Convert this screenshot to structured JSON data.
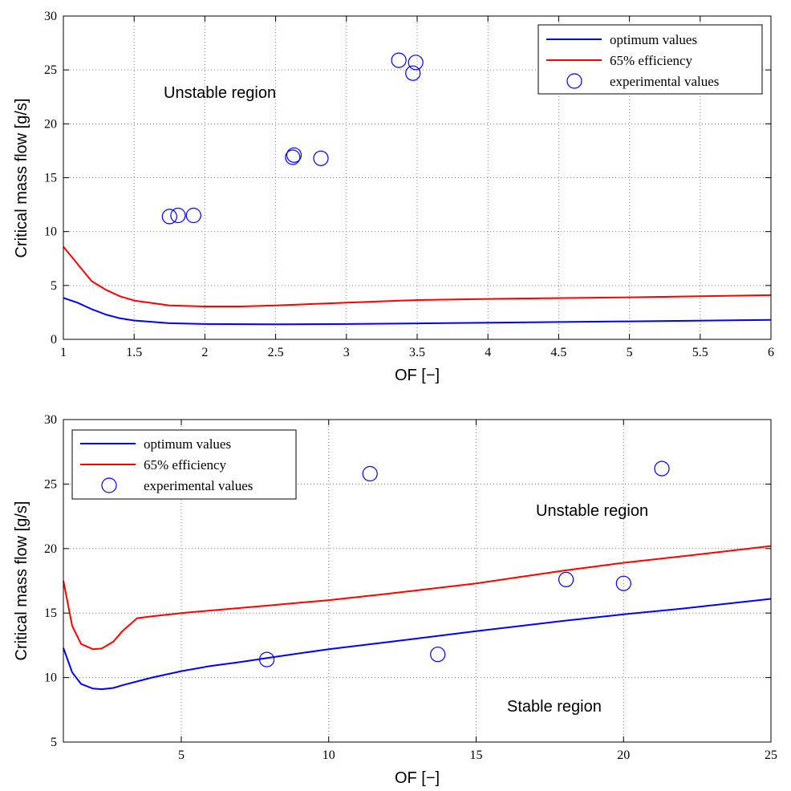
{
  "colors": {
    "optimum": "#0000ff",
    "efficiency": "#ff0000",
    "experimental": "#0000ff",
    "grid": "#7f7f7f",
    "axes": "#000000"
  },
  "chart_data": [
    {
      "type": "line",
      "xlabel": "OF [−]",
      "ylabel": "Critical mass flow [g/s]",
      "xlim": [
        1,
        6
      ],
      "ylim": [
        0,
        30
      ],
      "xticks": [
        1,
        1.5,
        2,
        2.5,
        3,
        3.5,
        4,
        4.5,
        5,
        5.5,
        6
      ],
      "xtick_labels": [
        "1",
        "1.5",
        "2",
        "2.5",
        "3",
        "3.5",
        "4",
        "4.5",
        "5",
        "5.5",
        "6"
      ],
      "yticks": [
        0,
        5,
        10,
        15,
        20,
        25,
        30
      ],
      "ytick_labels": [
        "0",
        "5",
        "10",
        "15",
        "20",
        "25",
        "30"
      ],
      "grid": "dotted",
      "legend_position": "top-right",
      "series": [
        {
          "name": "optimum values",
          "kind": "line",
          "color": "#0000ff",
          "x": [
            1,
            1.1,
            1.2,
            1.3,
            1.4,
            1.5,
            1.75,
            2,
            2.5,
            3,
            3.5,
            4,
            5,
            6
          ],
          "y": [
            3.85,
            3.4,
            2.8,
            2.3,
            1.95,
            1.75,
            1.5,
            1.42,
            1.4,
            1.42,
            1.48,
            1.55,
            1.67,
            1.8
          ]
        },
        {
          "name": "65% efficiency",
          "kind": "line",
          "color": "#ff0000",
          "x": [
            1,
            1.1,
            1.2,
            1.3,
            1.4,
            1.5,
            1.75,
            2,
            2.25,
            2.5,
            3,
            3.5,
            4,
            5,
            6
          ],
          "y": [
            8.6,
            7,
            5.4,
            4.6,
            4,
            3.6,
            3.15,
            3.05,
            3.05,
            3.15,
            3.4,
            3.65,
            3.75,
            3.9,
            4.1
          ]
        },
        {
          "name": "experimental values",
          "kind": "scatter",
          "color": "#0000ff",
          "x": [
            1.75,
            1.81,
            1.92,
            2.62,
            2.63,
            2.82,
            3.37,
            3.47,
            3.49
          ],
          "y": [
            11.4,
            11.5,
            11.5,
            16.9,
            17.1,
            16.8,
            25.9,
            24.7,
            25.7
          ]
        }
      ],
      "annotations": [
        {
          "text": "Unstable region",
          "x": 1.7,
          "y": 23.2
        }
      ]
    },
    {
      "type": "line",
      "xlabel": "OF [−]",
      "ylabel": "Critical mass flow [g/s]",
      "xlim": [
        1,
        25
      ],
      "ylim": [
        5,
        30
      ],
      "xticks": [
        5,
        10,
        15,
        20,
        25
      ],
      "xtick_labels": [
        "5",
        "10",
        "15",
        "20",
        "25"
      ],
      "yticks": [
        5,
        10,
        15,
        20,
        25,
        30
      ],
      "ytick_labels": [
        "5",
        "10",
        "15",
        "20",
        "25",
        "30"
      ],
      "grid": "dotted",
      "legend_position": "top-left",
      "series": [
        {
          "name": "optimum values",
          "kind": "line",
          "color": "#0000ff",
          "x": [
            1,
            1.3,
            1.6,
            2,
            2.3,
            2.7,
            3,
            3.5,
            4,
            5,
            6,
            7,
            8,
            10,
            12,
            15,
            18,
            20,
            22,
            25
          ],
          "y": [
            12.3,
            10.4,
            9.5,
            9.15,
            9.1,
            9.2,
            9.4,
            9.7,
            10,
            10.5,
            10.9,
            11.2,
            11.55,
            12.2,
            12.75,
            13.6,
            14.4,
            14.9,
            15.35,
            16.1
          ]
        },
        {
          "name": "65% efficiency",
          "kind": "line",
          "color": "#ff0000",
          "x": [
            1,
            1.3,
            1.6,
            2,
            2.3,
            2.7,
            3,
            3.5,
            4,
            5,
            6,
            8,
            10,
            12,
            15,
            18,
            20,
            22,
            25
          ],
          "y": [
            17.5,
            14,
            12.6,
            12.2,
            12.25,
            12.8,
            13.6,
            14.6,
            14.75,
            15,
            15.2,
            15.6,
            16,
            16.5,
            17.3,
            18.3,
            18.9,
            19.4,
            20.2
          ]
        },
        {
          "name": "experimental values",
          "kind": "scatter",
          "color": "#0000ff",
          "x": [
            7.9,
            11.4,
            13.7,
            18.05,
            20,
            21.3
          ],
          "y": [
            11.4,
            25.8,
            11.8,
            17.6,
            17.3,
            26.2
          ]
        }
      ],
      "annotations": [
        {
          "text": "Unstable region",
          "x": 20.2,
          "y": 21.9
        },
        {
          "text": "Stable region",
          "x": 19.3,
          "y": 7.9
        }
      ]
    }
  ]
}
